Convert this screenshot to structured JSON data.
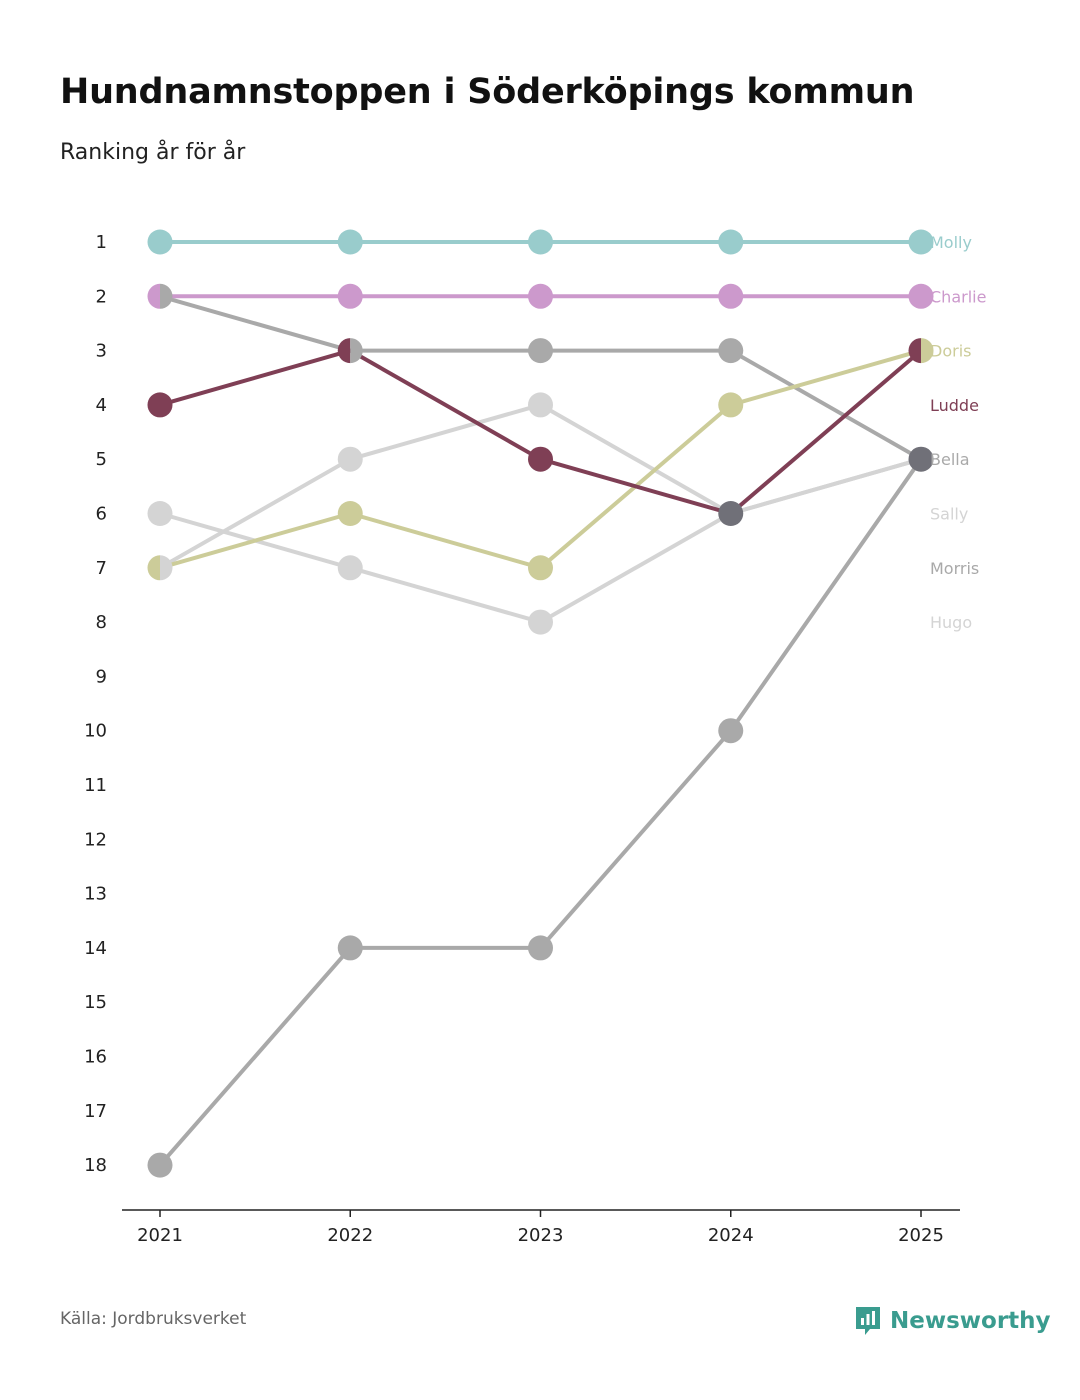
{
  "header": {
    "title": "Hundnamnstoppen i Söderköpings kommun",
    "subtitle": "Ranking år för år"
  },
  "footer": {
    "source": "Källa: Jordbruksverket",
    "brand": "Newsworthy",
    "brand_color": "#3a9c8f"
  },
  "chart_data": {
    "type": "line",
    "title": "Hundnamnstoppen i Söderköpings kommun",
    "subtitle": "Ranking år för år",
    "xlabel": "",
    "ylabel": "",
    "categories": [
      "2021",
      "2022",
      "2023",
      "2024",
      "2025"
    ],
    "y_ticks": [
      "1",
      "2",
      "3",
      "4",
      "5",
      "6",
      "7",
      "8",
      "9",
      "10",
      "11",
      "12",
      "13",
      "14",
      "15",
      "16",
      "17",
      "18"
    ],
    "ylim": [
      1,
      18
    ],
    "y_inverted": true,
    "grid": false,
    "series": [
      {
        "name": "Hugo",
        "color": "#d4d4d4",
        "values": [
          6,
          7,
          8,
          6,
          5
        ]
      },
      {
        "name": "Sally",
        "color": "#d4d4d4",
        "values": [
          7,
          5,
          4,
          6,
          5
        ]
      },
      {
        "name": "Morris",
        "color": "#a9a9a9",
        "values": [
          18,
          14,
          14,
          10,
          5
        ]
      },
      {
        "name": "Bella",
        "color": "#a9a9a9",
        "values": [
          2,
          3,
          3,
          3,
          5
        ]
      },
      {
        "name": "Doris",
        "color": "#cccc99",
        "values": [
          7,
          6,
          7,
          4,
          3
        ]
      },
      {
        "name": "Ludde",
        "color": "#7f3f55",
        "values": [
          4,
          3,
          5,
          6,
          3
        ]
      },
      {
        "name": "Charlie",
        "color": "#cc99cc",
        "values": [
          2,
          2,
          2,
          2,
          2
        ]
      },
      {
        "name": "Molly",
        "color": "#99cccc",
        "values": [
          1,
          1,
          1,
          1,
          1
        ]
      }
    ],
    "end_labels": [
      {
        "name": "Molly",
        "rank": 1,
        "color": "#99cccc"
      },
      {
        "name": "Charlie",
        "rank": 2,
        "color": "#cc99cc"
      },
      {
        "name": "Doris",
        "rank": 3,
        "color": "#cccc99"
      },
      {
        "name": "Ludde",
        "rank": 4,
        "color": "#7f3f55"
      },
      {
        "name": "Bella",
        "rank": 5,
        "color": "#a9a9a9"
      },
      {
        "name": "Sally",
        "rank": 6,
        "color": "#d4d4d4"
      },
      {
        "name": "Morris",
        "rank": 7,
        "color": "#a9a9a9"
      },
      {
        "name": "Hugo",
        "rank": 8,
        "color": "#d4d4d4"
      }
    ],
    "overlap_dot_color": "#707078"
  }
}
